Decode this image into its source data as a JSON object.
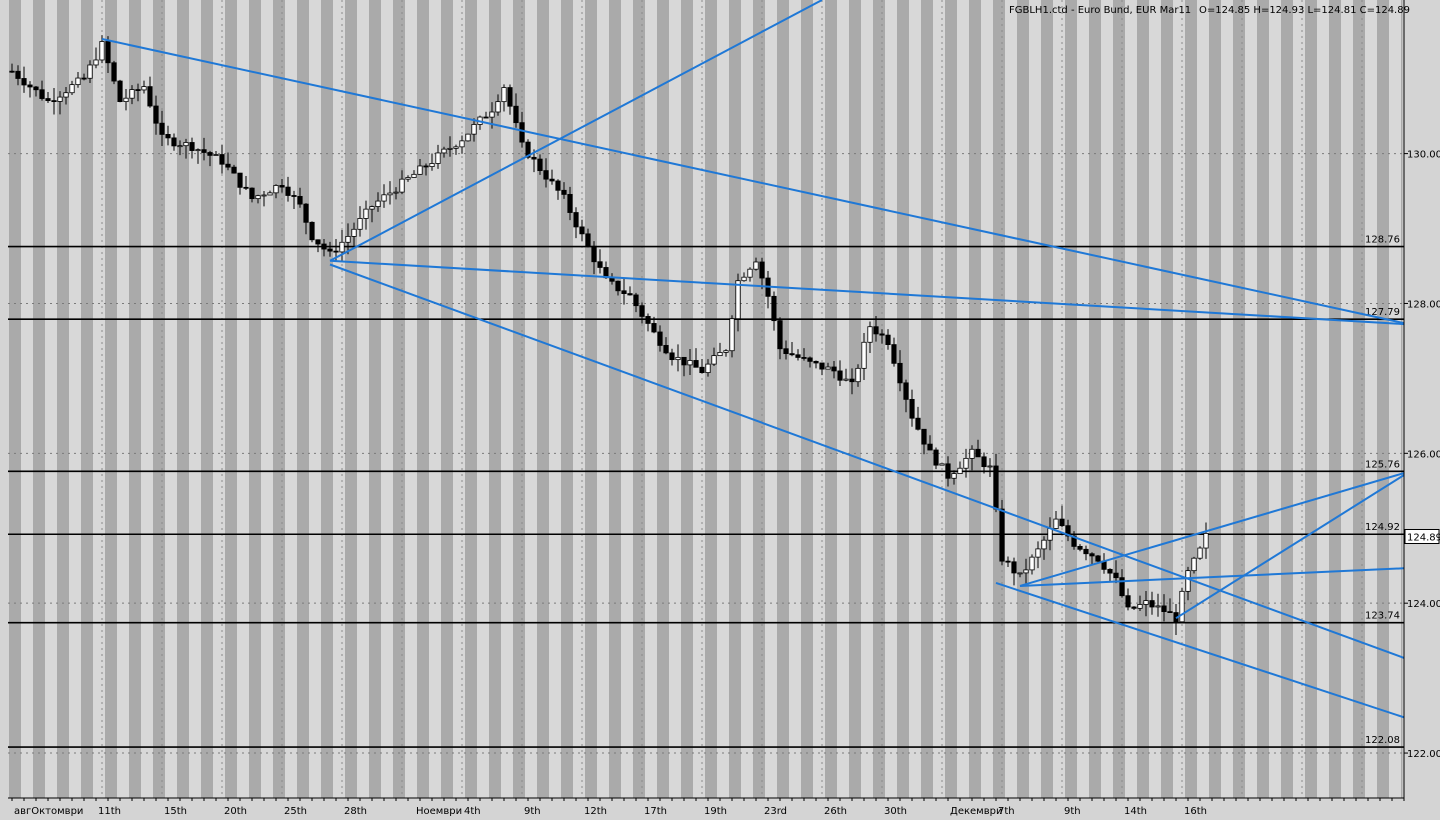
{
  "header": {
    "symbol_line": "FGBLH1.ctd - Euro Bund, EUR Mar11",
    "ohlc": "O=124.85 H=124.93 L=124.81 C=124.89"
  },
  "colors": {
    "background": "#d4d4d4",
    "band_dark": "#aaaaaa",
    "band_light": "#d8d8d8",
    "trendline": "#1f78d6",
    "level_line": "#000000",
    "bull_body": "#ffffff",
    "bear_body": "#000000"
  },
  "chart_data": {
    "type": "candlestick",
    "title": "FGBLH1.ctd - Euro Bund, EUR Mar11",
    "ylim": [
      121.4,
      132.05
    ],
    "y_ticks": [
      {
        "value": 130.0,
        "label": "130.00"
      },
      {
        "value": 128.0,
        "label": "128.00"
      },
      {
        "value": 126.0,
        "label": "126.00"
      },
      {
        "value": 124.0,
        "label": "124.00"
      },
      {
        "value": 122.0,
        "label": "122.00"
      }
    ],
    "current_price": {
      "value": 124.89,
      "label": "124.89"
    },
    "x_tick_labels": [
      {
        "bar": 1,
        "label": "авгОктомври"
      },
      {
        "bar": 15,
        "label": "11th"
      },
      {
        "bar": 26,
        "label": "15th"
      },
      {
        "bar": 36,
        "label": "20th"
      },
      {
        "bar": 46,
        "label": "25th"
      },
      {
        "bar": 56,
        "label": "28th"
      },
      {
        "bar": 68,
        "label": "Ноември"
      },
      {
        "bar": 76,
        "label": "4th"
      },
      {
        "bar": 86,
        "label": "9th"
      },
      {
        "bar": 96,
        "label": "12th"
      },
      {
        "bar": 106,
        "label": "17th"
      },
      {
        "bar": 116,
        "label": "19th"
      },
      {
        "bar": 126,
        "label": "23rd"
      },
      {
        "bar": 136,
        "label": "26th"
      },
      {
        "bar": 146,
        "label": "30th"
      },
      {
        "bar": 157,
        "label": "Декември"
      },
      {
        "bar": 165,
        "label": "7th"
      },
      {
        "bar": 176,
        "label": "9th"
      },
      {
        "bar": 186,
        "label": "14th"
      },
      {
        "bar": 196,
        "label": "16th"
      }
    ],
    "horizontal_levels": [
      {
        "value": 128.76,
        "label": "128.76"
      },
      {
        "value": 127.79,
        "label": "127.79"
      },
      {
        "value": 125.76,
        "label": "125.76"
      },
      {
        "value": 124.92,
        "label": "124.92"
      },
      {
        "value": 123.74,
        "label": "123.74"
      },
      {
        "value": 122.08,
        "label": "122.08"
      }
    ],
    "trendlines": [
      {
        "name": "upper-channel",
        "from": [
          15,
          131.53
        ],
        "to": [
          233,
          127.72
        ]
      },
      {
        "name": "lower-channel",
        "from": [
          53,
          128.52
        ],
        "to": [
          233,
          123.24
        ]
      },
      {
        "name": "rising-line-1",
        "from": [
          53,
          128.57
        ],
        "to": [
          135,
          132.05
        ]
      },
      {
        "name": "rising-line-2",
        "from": [
          53,
          128.57
        ],
        "to": [
          233,
          127.72
        ]
      },
      {
        "name": "dec-lower-channel",
        "from": [
          164,
          124.27
        ],
        "to": [
          233,
          122.45
        ]
      },
      {
        "name": "dec-upper-channel",
        "from": [
          168,
          124.23
        ],
        "to": [
          233,
          124.47
        ]
      },
      {
        "name": "dec-rising-1",
        "from": [
          168,
          124.23
        ],
        "to": [
          233,
          125.76
        ]
      },
      {
        "name": "dec-rising-2",
        "from": [
          194,
          123.8
        ],
        "to": [
          233,
          125.76
        ]
      }
    ],
    "close_anchors": [
      [
        0,
        131.1
      ],
      [
        6,
        130.7
      ],
      [
        12,
        131.0
      ],
      [
        15,
        131.45
      ],
      [
        18,
        130.7
      ],
      [
        22,
        130.9
      ],
      [
        25,
        130.2
      ],
      [
        30,
        130.1
      ],
      [
        35,
        129.9
      ],
      [
        40,
        129.4
      ],
      [
        45,
        129.6
      ],
      [
        48,
        129.3
      ],
      [
        50,
        128.9
      ],
      [
        53,
        128.65
      ],
      [
        56,
        128.9
      ],
      [
        60,
        129.3
      ],
      [
        65,
        129.6
      ],
      [
        70,
        129.9
      ],
      [
        75,
        130.2
      ],
      [
        80,
        130.6
      ],
      [
        82,
        130.9
      ],
      [
        85,
        130.1
      ],
      [
        88,
        129.8
      ],
      [
        92,
        129.4
      ],
      [
        95,
        128.9
      ],
      [
        99,
        128.3
      ],
      [
        103,
        128.1
      ],
      [
        107,
        127.6
      ],
      [
        110,
        127.3
      ],
      [
        115,
        127.1
      ],
      [
        119,
        127.4
      ],
      [
        121,
        128.3
      ],
      [
        124,
        128.6
      ],
      [
        126,
        128.1
      ],
      [
        128,
        127.4
      ],
      [
        133,
        127.2
      ],
      [
        137,
        127.1
      ],
      [
        140,
        126.9
      ],
      [
        143,
        127.7
      ],
      [
        146,
        127.5
      ],
      [
        150,
        126.5
      ],
      [
        153,
        126.0
      ],
      [
        156,
        125.7
      ],
      [
        160,
        126.0
      ],
      [
        163,
        125.8
      ],
      [
        165,
        124.6
      ],
      [
        168,
        124.35
      ],
      [
        171,
        124.7
      ],
      [
        174,
        125.1
      ],
      [
        177,
        124.8
      ],
      [
        181,
        124.6
      ],
      [
        184,
        124.3
      ],
      [
        186,
        123.9
      ],
      [
        189,
        124.0
      ],
      [
        192,
        123.9
      ],
      [
        194,
        123.8
      ],
      [
        196,
        124.4
      ],
      [
        198,
        124.7
      ],
      [
        199,
        124.89
      ]
    ]
  }
}
